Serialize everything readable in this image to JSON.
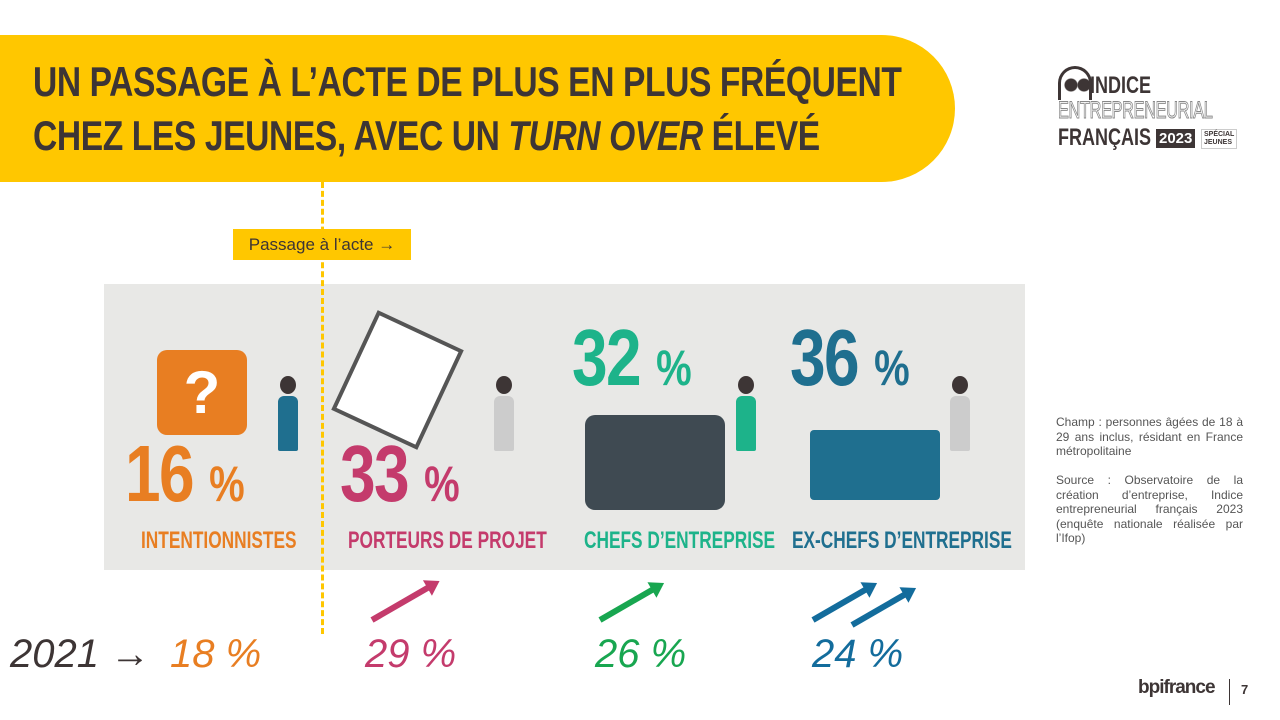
{
  "title": {
    "line1": "UN PASSAGE À L’ACTE DE PLUS EN PLUS FRÉQUENT",
    "line2_pre": "CHEZ LES JEUNES, AVEC UN ",
    "line2_em": "TURN OVER",
    "line2_post": "  ÉLEVÉ"
  },
  "logo": {
    "l1": "INDICE",
    "l2": "ENTREPRENEURIAL",
    "l3": "FRANÇAIS",
    "year": "2023",
    "special": "SPÉCIAL",
    "jeunes": "JEUNES"
  },
  "passage": "Passage à l’acte →",
  "categories": [
    {
      "value": "16",
      "unit": "%",
      "label": "INTENTIONNISTES",
      "color": "#E87E22",
      "value_2021": "18 %",
      "trend": "down"
    },
    {
      "value": "33",
      "unit": "%",
      "label": "PORTEURS DE PROJET",
      "color": "#C43B6C",
      "value_2021": "29 %",
      "trend": "up"
    },
    {
      "value": "32",
      "unit": "%",
      "label": "CHEFS D’ENTREPRISE",
      "color": "#1DB38A",
      "value_2021": "26 %",
      "trend": "up"
    },
    {
      "value": "36",
      "unit": "%",
      "label": "EX-CHEFS D’ENTREPRISE",
      "color": "#1F6F8F",
      "value_2021": "24 %",
      "trend": "strong-up"
    }
  ],
  "year_label": "2021 →",
  "note": {
    "champ": "Champ : personnes âgées de 18 à 29 ans inclus, résidant en France métropolitaine",
    "source": "Source : Observatoire de la création d’entreprise, Indice entrepreneurial français 2023 (enquête nationale réalisée par l’Ifop)"
  },
  "footer": {
    "brand": "bpifrance",
    "page": "7"
  }
}
